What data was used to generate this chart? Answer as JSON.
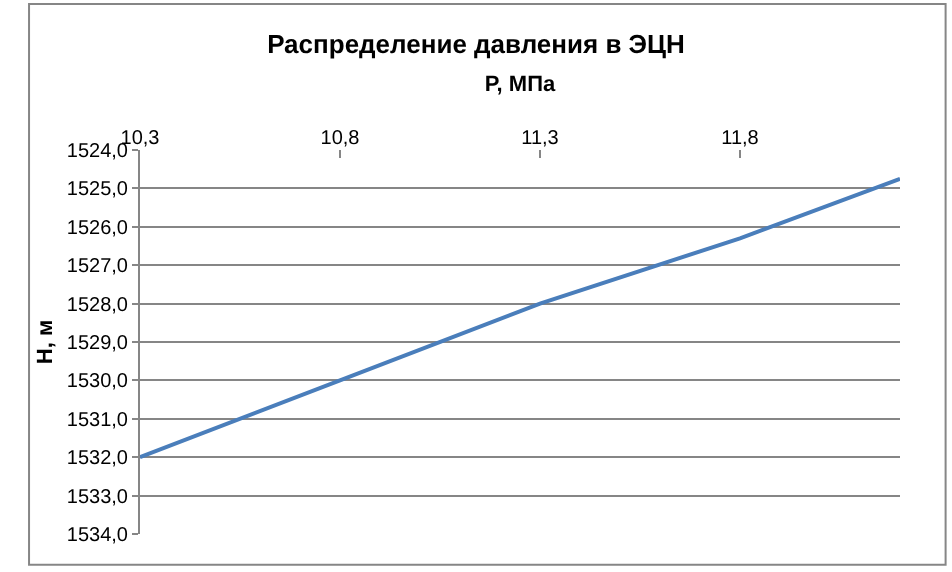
{
  "chart_data": {
    "type": "line",
    "title": "Распределение давления в ЭЦН",
    "xlabel": "P, МПа",
    "ylabel": "H, м",
    "x": [
      10.3,
      10.8,
      11.3,
      11.8,
      12.2
    ],
    "series": [
      {
        "color": "#4a7ebb",
        "values": [
          1532.0,
          1530.0,
          1528.0,
          1526.3,
          1524.75
        ]
      }
    ],
    "xlim": [
      10.3,
      12.2
    ],
    "xticks": [
      {
        "value": 10.3,
        "label": "10,3"
      },
      {
        "value": 10.8,
        "label": "10,8"
      },
      {
        "value": 11.3,
        "label": "11,3"
      },
      {
        "value": 11.8,
        "label": "11,8"
      }
    ],
    "ylim": [
      1534,
      1524
    ],
    "yticks": [
      {
        "value": 1524,
        "label": "1524,0"
      },
      {
        "value": 1525,
        "label": "1525,0"
      },
      {
        "value": 1526,
        "label": "1526,0"
      },
      {
        "value": 1527,
        "label": "1527,0"
      },
      {
        "value": 1528,
        "label": "1528,0"
      },
      {
        "value": 1529,
        "label": "1529,0"
      },
      {
        "value": 1530,
        "label": "1530,0"
      },
      {
        "value": 1531,
        "label": "1531,0"
      },
      {
        "value": 1532,
        "label": "1532,0"
      },
      {
        "value": 1533,
        "label": "1533,0"
      },
      {
        "value": 1534,
        "label": "1534,0"
      }
    ],
    "grid": "y",
    "marker": "none",
    "line_style": "solid"
  }
}
